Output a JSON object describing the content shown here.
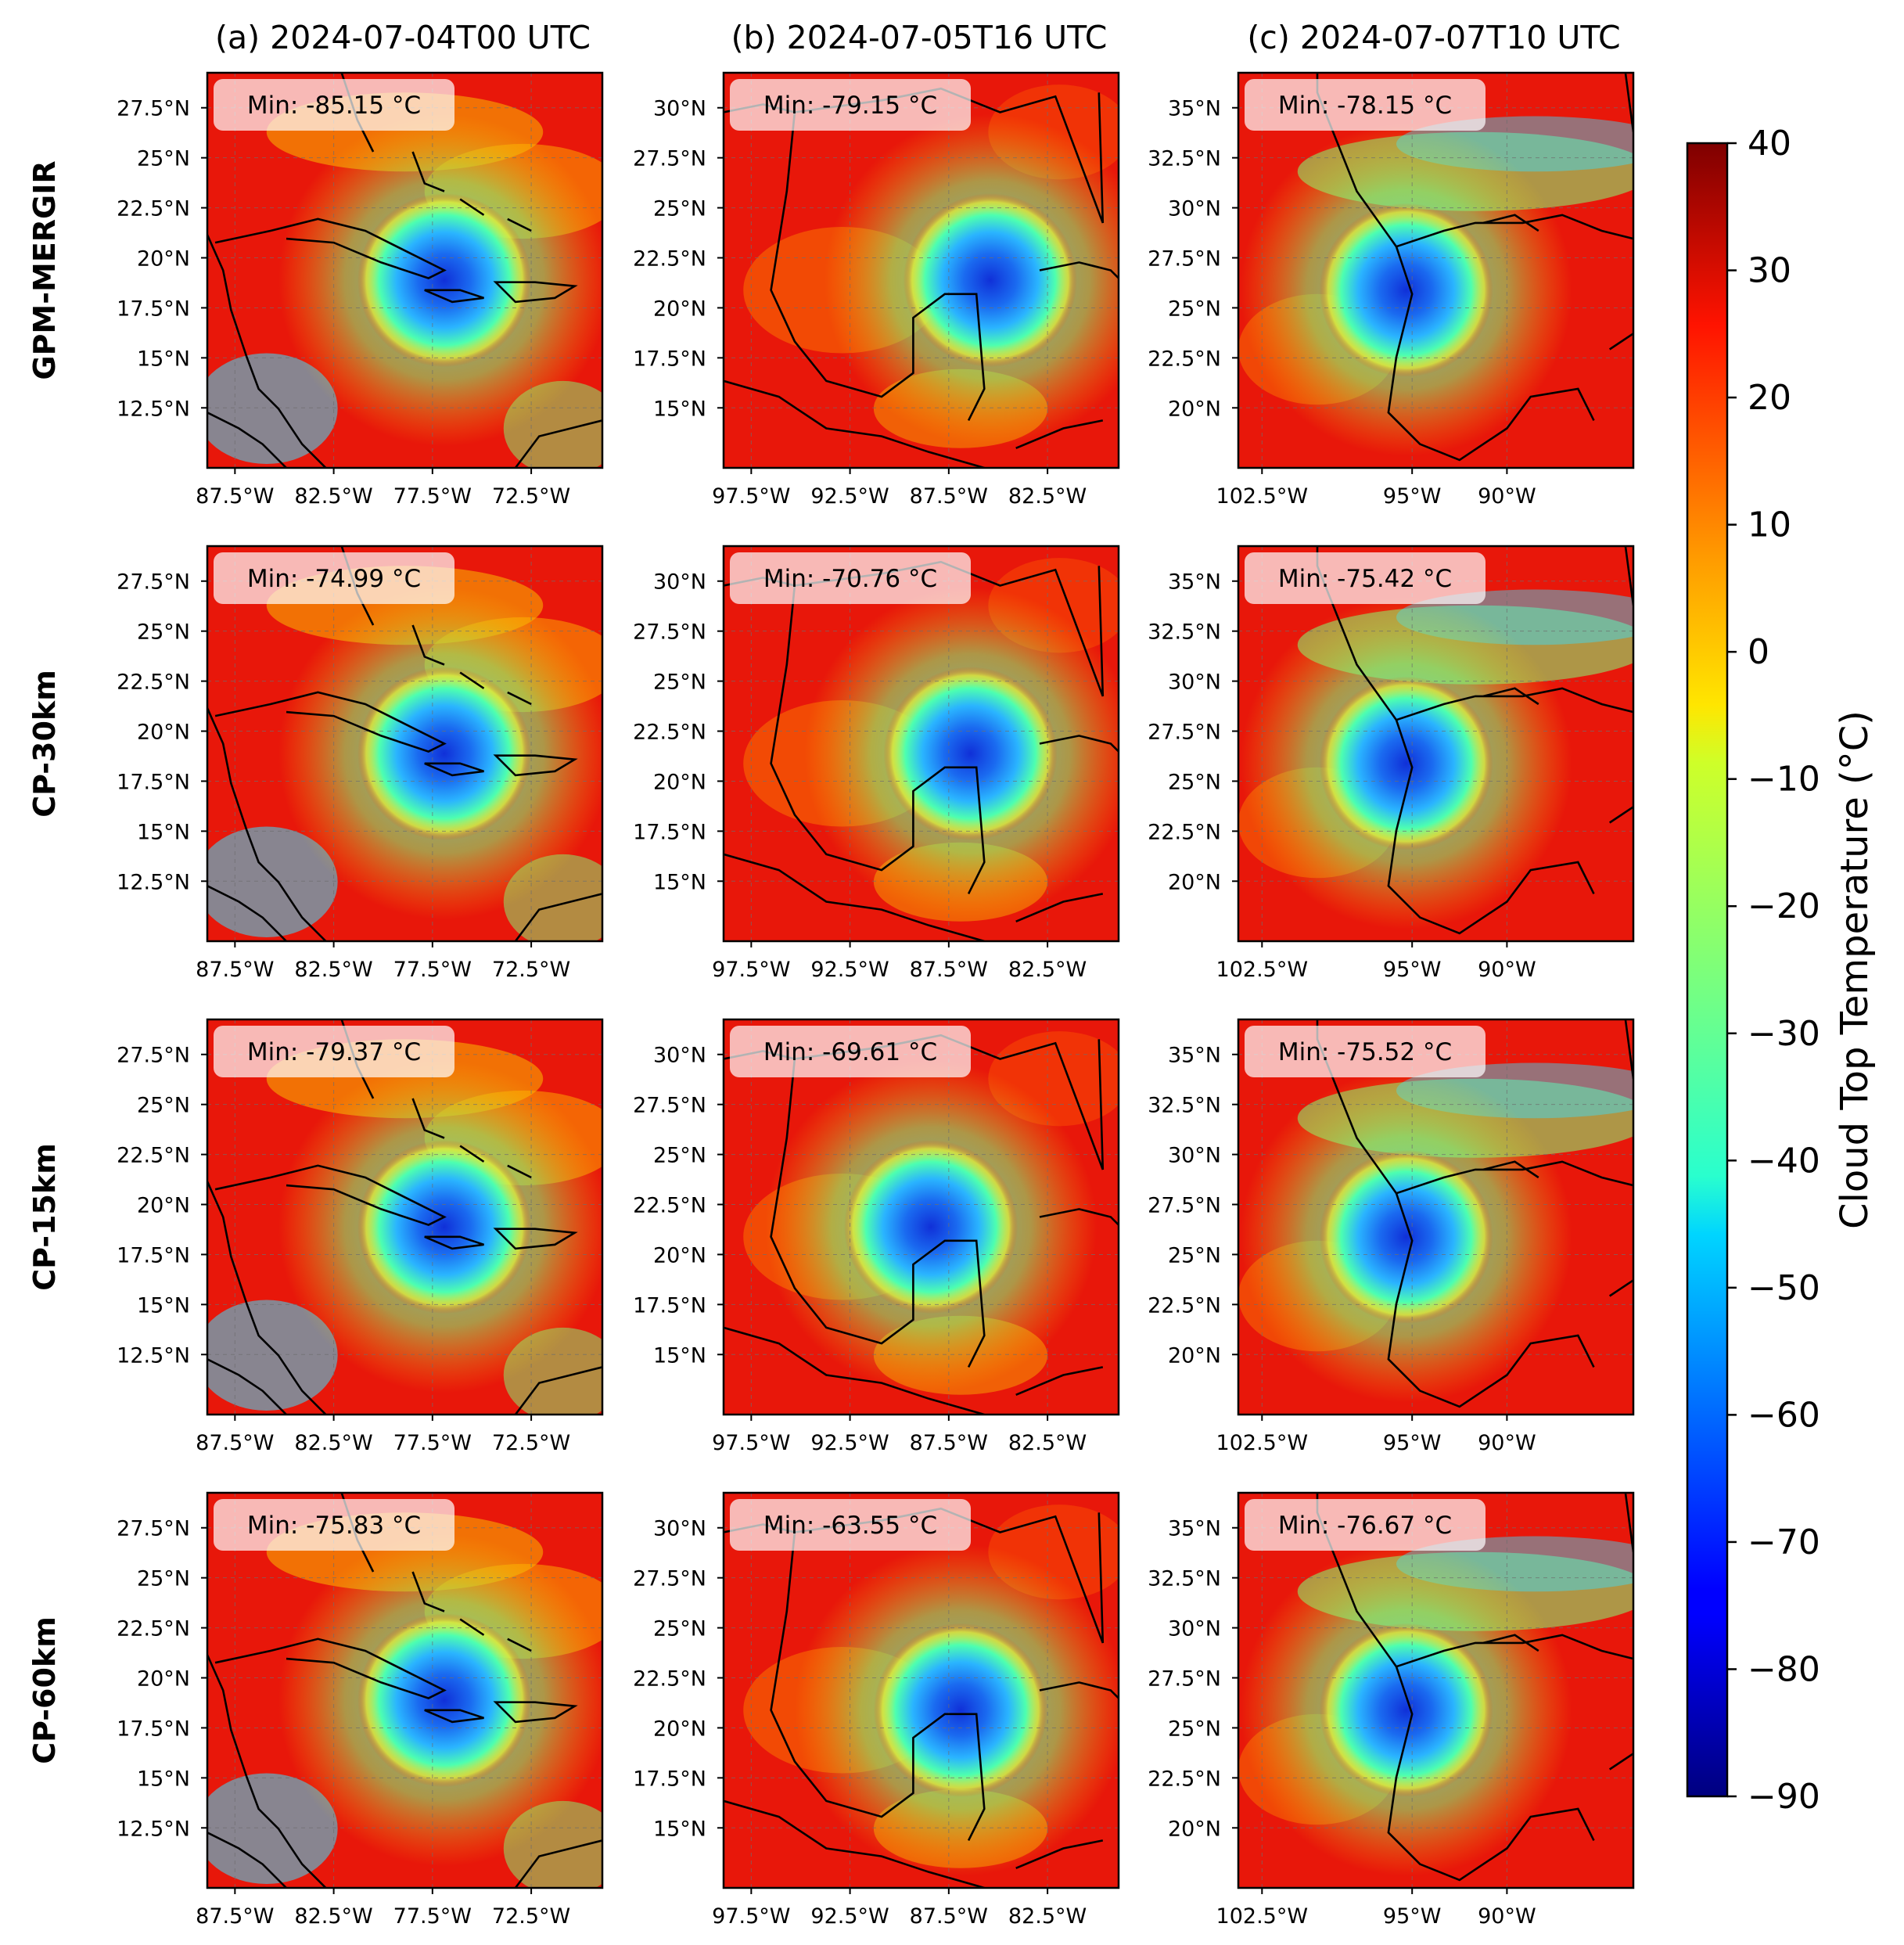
{
  "colors": {
    "frame": "#000000",
    "coastline": "#000000",
    "gridline": "#6e6e6e",
    "min_box_fill": "#ffffff",
    "colormap": "jet"
  },
  "chart_data": {
    "type": "heatmap",
    "layout_note_rows_cols": [
      4,
      3
    ],
    "columns": [
      {
        "title": "(a) 2024-07-04T00 UTC",
        "lat_ticks": [
          "27.5°N",
          "25°N",
          "22.5°N",
          "20°N",
          "17.5°N",
          "15°N",
          "12.5°N"
        ],
        "lon_ticks": [
          "87.5°W",
          "82.5°W",
          "77.5°W",
          "72.5°W"
        ],
        "lon_range": [
          -90,
          -70
        ],
        "lat_range": [
          10,
          30
        ]
      },
      {
        "title": "(b) 2024-07-05T16 UTC",
        "lat_ticks": [
          "30°N",
          "27.5°N",
          "25°N",
          "22.5°N",
          "20°N",
          "17.5°N",
          "15°N"
        ],
        "lon_ticks": [
          "97.5°W",
          "92.5°W",
          "87.5°W",
          "82.5°W"
        ],
        "lon_range": [
          -100,
          -80
        ],
        "lat_range": [
          12.5,
          32.5
        ]
      },
      {
        "title": "(c) 2024-07-07T10 UTC",
        "lat_ticks": [
          "35°N",
          "32.5°N",
          "30°N",
          "27.5°N",
          "25°N",
          "22.5°N",
          "20°N"
        ],
        "lon_ticks": [
          "102.5°W",
          "95°W",
          "90°W"
        ],
        "lon_range": [
          -105,
          -85
        ],
        "lat_range": [
          17.5,
          37.5
        ]
      }
    ],
    "rows": [
      {
        "label": "GPM-MERGIR",
        "mins": [
          "Min: -85.15 °C",
          "Min: -79.15 °C",
          "Min: -78.15 °C"
        ]
      },
      {
        "label": "CP-30km",
        "mins": [
          "Min: -74.99 °C",
          "Min: -70.76 °C",
          "Min: -75.42 °C"
        ]
      },
      {
        "label": "CP-15km",
        "mins": [
          "Min: -79.37 °C",
          "Min: -69.61 °C",
          "Min: -75.52 °C"
        ]
      },
      {
        "label": "CP-60km",
        "mins": [
          "Min: -75.83 °C",
          "Min: -63.55 °C",
          "Min: -76.67 °C"
        ]
      }
    ],
    "storm_centers": [
      [
        [
          -78,
          19.5
        ],
        [
          -86.5,
          22
        ],
        [
          -96.5,
          26.5
        ]
      ],
      [
        [
          -78,
          19.5
        ],
        [
          -87.5,
          22
        ],
        [
          -96.5,
          26.5
        ]
      ],
      [
        [
          -78,
          19.5
        ],
        [
          -89.5,
          22
        ],
        [
          -96.5,
          26.5
        ]
      ],
      [
        [
          -78,
          19.5
        ],
        [
          -88,
          21.5
        ],
        [
          -96.5,
          26.5
        ]
      ]
    ],
    "colorbar": {
      "label": "Cloud Top Temperature (°C)",
      "range": [
        -90,
        40
      ],
      "ticks": [
        "40",
        "30",
        "20",
        "10",
        "0",
        "−10",
        "−20",
        "−30",
        "−40",
        "−50",
        "−60",
        "−70",
        "−80",
        "−90"
      ]
    }
  }
}
